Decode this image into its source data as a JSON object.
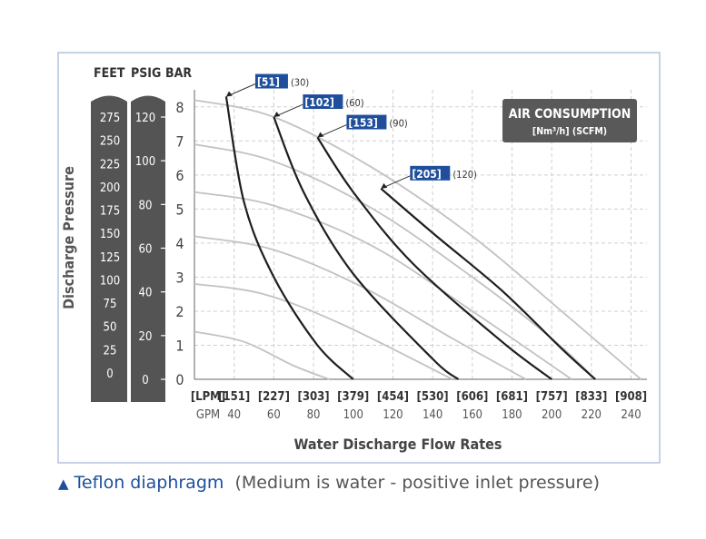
{
  "unit_headers": {
    "feet": "FEET",
    "psig": "PSIG",
    "bar": "BAR"
  },
  "feet_ticks": [
    "275",
    "250",
    "225",
    "200",
    "175",
    "150",
    "125",
    "100",
    "75",
    "50",
    "25",
    "0"
  ],
  "psig_ticks": [
    "120",
    "100",
    "80",
    "60",
    "40",
    "20",
    "0"
  ],
  "caption": {
    "marker": "▲",
    "emphasis": "Teflon diaphragm",
    "rest": "(Medium is water -  positive inlet pressure)"
  },
  "colors": {
    "border": "#9fb4d6",
    "bar_fill": "#545454",
    "label_box": "#1f4f9c",
    "gray_curve": "#c2c2c2",
    "black_curve": "#1e1e1e",
    "legend_box": "#595959",
    "grid": "#cfcfcf"
  },
  "chart_data": {
    "type": "line",
    "ylabel": "Discharge Pressure",
    "xlabel": "Water Discharge Flow Rates",
    "y_unit": "BAR",
    "ylim": [
      0,
      8.5
    ],
    "y_ticks": [
      "0",
      "1",
      "2",
      "3",
      "4",
      "5",
      "6",
      "7",
      "8"
    ],
    "xlim": [
      20,
      248
    ],
    "x_ticks": [
      {
        "gpm": 20,
        "lpm": "[LPM]",
        "gpm_label": "GPM"
      },
      {
        "gpm": 40,
        "lpm": "[151]",
        "gpm_label": "40"
      },
      {
        "gpm": 60,
        "lpm": "[227]",
        "gpm_label": "60"
      },
      {
        "gpm": 80,
        "lpm": "[303]",
        "gpm_label": "80"
      },
      {
        "gpm": 100,
        "lpm": "[379]",
        "gpm_label": "100"
      },
      {
        "gpm": 120,
        "lpm": "[454]",
        "gpm_label": "120"
      },
      {
        "gpm": 140,
        "lpm": "[530]",
        "gpm_label": "140"
      },
      {
        "gpm": 160,
        "lpm": "[606]",
        "gpm_label": "160"
      },
      {
        "gpm": 180,
        "lpm": "[681]",
        "gpm_label": "180"
      },
      {
        "gpm": 200,
        "lpm": "[757]",
        "gpm_label": "200"
      },
      {
        "gpm": 220,
        "lpm": "[833]",
        "gpm_label": "220"
      },
      {
        "gpm": 240,
        "lpm": "[908]",
        "gpm_label": "240"
      }
    ],
    "legend": {
      "title": "AIR CONSUMPTION",
      "unit_bracket": "[Nm³/h]",
      "unit_paren": "(SCFM)",
      "placement": "top-right"
    },
    "air_curves": [
      {
        "label_bracket": "[51]",
        "label_paren": "(30)",
        "points": [
          [
            36,
            8.3
          ],
          [
            45,
            5.2
          ],
          [
            60,
            3.0
          ],
          [
            82,
            1.0
          ],
          [
            100,
            0
          ]
        ]
      },
      {
        "label_bracket": "[102]",
        "label_paren": "(60)",
        "points": [
          [
            60,
            7.7
          ],
          [
            75,
            5.5
          ],
          [
            100,
            3.1
          ],
          [
            140,
            0.6
          ],
          [
            153,
            0
          ]
        ]
      },
      {
        "label_bracket": "[153]",
        "label_paren": "(90)",
        "points": [
          [
            82,
            7.1
          ],
          [
            100,
            5.5
          ],
          [
            130,
            3.4
          ],
          [
            175,
            1.1
          ],
          [
            200,
            0
          ]
        ]
      },
      {
        "label_bracket": "[205]",
        "label_paren": "(120)",
        "points": [
          [
            114,
            5.6
          ],
          [
            140,
            4.3
          ],
          [
            175,
            2.6
          ],
          [
            205,
            0.9
          ],
          [
            222,
            0
          ]
        ]
      }
    ],
    "pressure_curves": [
      {
        "points": [
          [
            20,
            8.2
          ],
          [
            60,
            7.7
          ],
          [
            110,
            6.2
          ],
          [
            160,
            4.2
          ],
          [
            205,
            2.0
          ],
          [
            245,
            0
          ]
        ]
      },
      {
        "points": [
          [
            20,
            6.9
          ],
          [
            60,
            6.4
          ],
          [
            110,
            5.0
          ],
          [
            160,
            3.0
          ],
          [
            200,
            1.2
          ],
          [
            222,
            0
          ]
        ]
      },
      {
        "points": [
          [
            20,
            5.5
          ],
          [
            60,
            5.1
          ],
          [
            110,
            3.9
          ],
          [
            160,
            2.0
          ],
          [
            210,
            0
          ]
        ]
      },
      {
        "points": [
          [
            20,
            4.2
          ],
          [
            60,
            3.8
          ],
          [
            105,
            2.7
          ],
          [
            150,
            1.2
          ],
          [
            187,
            0
          ]
        ]
      },
      {
        "points": [
          [
            20,
            2.8
          ],
          [
            55,
            2.5
          ],
          [
            95,
            1.6
          ],
          [
            150,
            0
          ]
        ]
      },
      {
        "points": [
          [
            20,
            1.4
          ],
          [
            45,
            1.1
          ],
          [
            70,
            0.4
          ],
          [
            88,
            0
          ]
        ]
      }
    ]
  }
}
